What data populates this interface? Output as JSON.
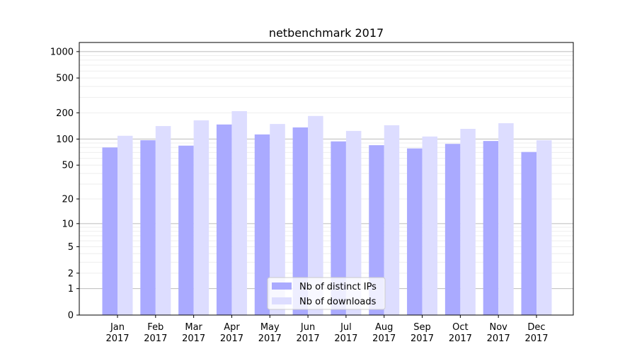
{
  "chart_data": {
    "type": "bar",
    "title": "netbenchmark 2017",
    "xlabel": "",
    "ylabel": "",
    "yscale": "log(1+y)",
    "ylim": [
      0,
      1270
    ],
    "yticks": [
      0,
      1,
      2,
      5,
      10,
      20,
      50,
      100,
      200,
      500,
      1000
    ],
    "grid": true,
    "legend_position": "lower center",
    "categories": [
      "Jan\n2017",
      "Feb\n2017",
      "Mar\n2017",
      "Apr\n2017",
      "May\n2017",
      "Jun\n2017",
      "Jul\n2017",
      "Aug\n2017",
      "Sep\n2017",
      "Oct\n2017",
      "Nov\n2017",
      "Dec\n2017"
    ],
    "series": [
      {
        "name": "Nb of distinct IPs",
        "color": "#aaaaff",
        "values": [
          80,
          97,
          84,
          147,
          113,
          136,
          94,
          85,
          78,
          88,
          95,
          71
        ]
      },
      {
        "name": "Nb of downloads",
        "color": "#ddddff",
        "values": [
          109,
          141,
          164,
          209,
          149,
          184,
          124,
          144,
          107,
          131,
          152,
          97
        ]
      }
    ]
  }
}
